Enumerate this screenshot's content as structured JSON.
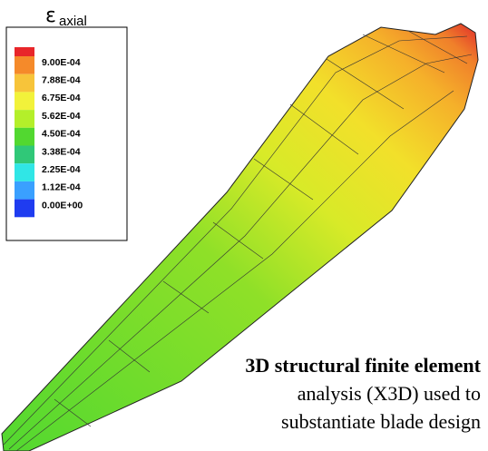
{
  "legend": {
    "symbol": "ε",
    "subscript": "axial",
    "labels": [
      "9.00E-04",
      "7.88E-04",
      "6.75E-04",
      "5.62E-04",
      "4.50E-04",
      "3.38E-04",
      "2.25E-04",
      "1.12E-04",
      "0.00E+00"
    ],
    "colors": [
      "#e8262a",
      "#f58a2a",
      "#f7c43a",
      "#f2f23a",
      "#b4ef2a",
      "#52d830",
      "#30c878",
      "#30e6e6",
      "#3aa0ff",
      "#1f3cf0"
    ]
  },
  "caption": {
    "lines": [
      "3D structural finite element",
      "analysis (X3D) used to",
      "substantiate blade design"
    ]
  }
}
